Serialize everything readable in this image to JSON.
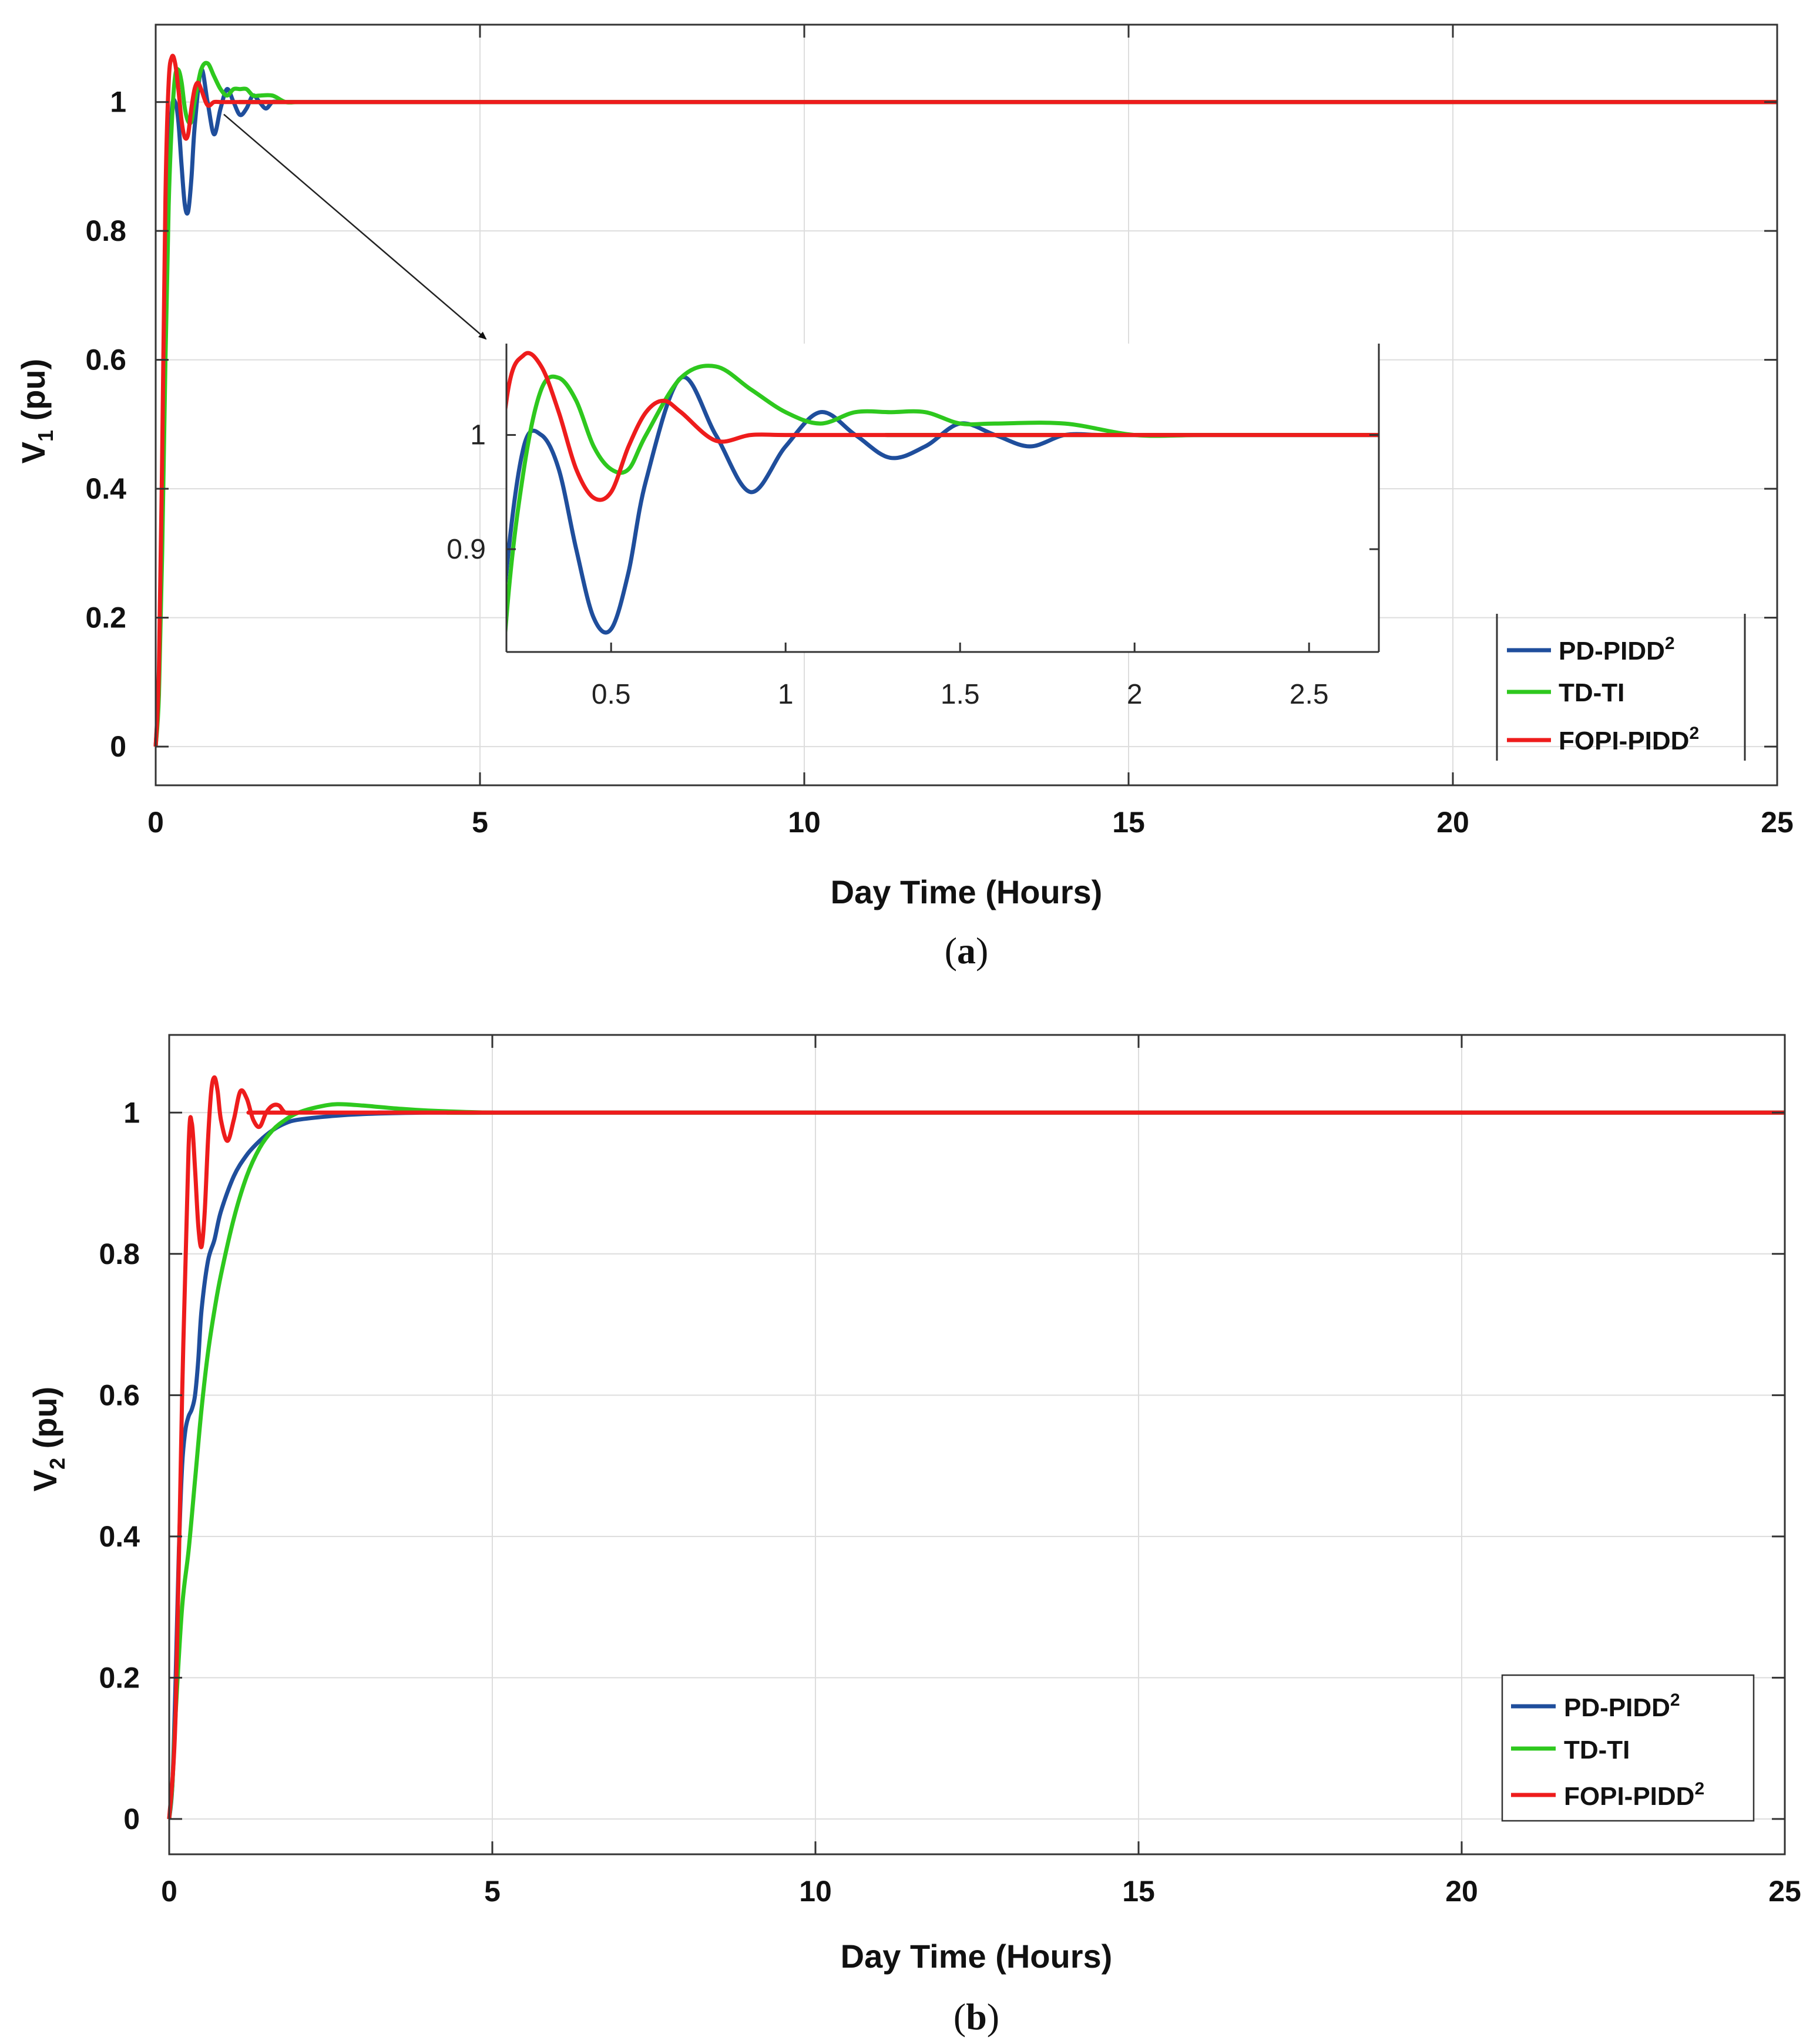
{
  "chart_data": [
    {
      "type": "line",
      "id": "a",
      "caption": "a",
      "ylabel": "V",
      "ylabel_sub": "1",
      "ylabel_unit": "(pu)",
      "xlabel": "Day Time (Hours)",
      "xlim": [
        0,
        25
      ],
      "ylim": [
        -0.06,
        1.12
      ],
      "xticks": [
        0,
        5,
        10,
        15,
        20,
        25
      ],
      "yticks": [
        0,
        0.2,
        0.4,
        0.6,
        0.8,
        1
      ],
      "ytick_labels": [
        "0",
        "0.2",
        "0.4",
        "0.6",
        "0.8",
        "1"
      ],
      "legend_position": "bottom-right",
      "series": [
        {
          "name": "PD-PIDD",
          "sup": "2",
          "color": "#1f4e9c",
          "x": [
            0,
            0.05,
            0.1,
            0.15,
            0.2,
            0.25,
            0.3,
            0.35,
            0.4,
            0.45,
            0.5,
            0.55,
            0.6,
            0.7,
            0.8,
            0.9,
            1.0,
            1.1,
            1.2,
            1.3,
            1.4,
            1.5,
            1.6,
            1.7,
            1.8,
            1.9,
            2.0,
            2.2,
            2.4,
            2.7,
            3,
            25
          ],
          "y": [
            0,
            0.1,
            0.35,
            0.68,
            0.88,
            0.99,
            1.0,
            0.97,
            0.9,
            0.84,
            0.83,
            0.88,
            0.96,
            1.05,
            1.0,
            0.95,
            0.99,
            1.02,
            1.0,
            0.98,
            0.99,
            1.01,
            1.0,
            0.99,
            1.0,
            1.0,
            1.0,
            1.0,
            1.0,
            1.0,
            1.0,
            1.0
          ]
        },
        {
          "name": "TD-TI",
          "sup": "",
          "color": "#2ec81e",
          "x": [
            0,
            0.05,
            0.1,
            0.15,
            0.2,
            0.25,
            0.3,
            0.35,
            0.4,
            0.45,
            0.5,
            0.55,
            0.6,
            0.7,
            0.8,
            0.9,
            1.0,
            1.1,
            1.2,
            1.3,
            1.4,
            1.5,
            1.6,
            1.8,
            2.0,
            2.2,
            2.5,
            2.7,
            3,
            25
          ],
          "y": [
            0,
            0.08,
            0.3,
            0.6,
            0.84,
            0.97,
            1.04,
            1.05,
            1.03,
            0.99,
            0.97,
            0.97,
            1.0,
            1.05,
            1.06,
            1.04,
            1.02,
            1.01,
            1.02,
            1.02,
            1.02,
            1.01,
            1.01,
            1.01,
            1.0,
            1.0,
            1.0,
            1.0,
            1.0,
            1.0
          ]
        },
        {
          "name": "FOPI-PIDD",
          "sup": "2",
          "color": "#ee1c1c",
          "x": [
            0,
            0.05,
            0.1,
            0.15,
            0.2,
            0.25,
            0.3,
            0.35,
            0.4,
            0.45,
            0.5,
            0.55,
            0.6,
            0.65,
            0.7,
            0.8,
            0.9,
            1.0,
            1.2,
            1.5,
            2.0,
            2.7,
            3,
            25
          ],
          "y": [
            0,
            0.12,
            0.45,
            0.85,
            1.03,
            1.07,
            1.06,
            1.02,
            0.97,
            0.945,
            0.95,
            0.99,
            1.02,
            1.03,
            1.02,
            0.995,
            1.0,
            1.0,
            1.0,
            1.0,
            1.0,
            1.0,
            1.0,
            1.0
          ]
        }
      ],
      "inset": {
        "xlim": [
          0.2,
          2.7
        ],
        "ylim": [
          0.81,
          1.08
        ],
        "xticks": [
          0.5,
          1,
          1.5,
          2,
          2.5
        ],
        "xtick_labels": [
          "0.5",
          "1",
          "1.5",
          "2",
          "2.5"
        ],
        "yticks": [
          0.9,
          1
        ],
        "ytick_labels": [
          "0.9",
          "1"
        ],
        "pointer_from": [
          1.05,
          0.99
        ]
      }
    },
    {
      "type": "line",
      "id": "b",
      "caption": "b",
      "ylabel": "V",
      "ylabel_sub": "2",
      "ylabel_unit": "(pu)",
      "xlabel": "Day Time (Hours)",
      "xlim": [
        0,
        25
      ],
      "ylim": [
        -0.05,
        1.11
      ],
      "xticks": [
        0,
        5,
        10,
        15,
        20,
        25
      ],
      "yticks": [
        0,
        0.2,
        0.4,
        0.6,
        0.8,
        1
      ],
      "ytick_labels": [
        "0",
        "0.2",
        "0.4",
        "0.6",
        "0.8",
        "1"
      ],
      "legend_position": "bottom-right",
      "series": [
        {
          "name": "PD-PIDD",
          "sup": "2",
          "color": "#1f4e9c",
          "x": [
            0,
            0.05,
            0.1,
            0.15,
            0.2,
            0.25,
            0.3,
            0.35,
            0.4,
            0.45,
            0.5,
            0.6,
            0.7,
            0.8,
            1.0,
            1.2,
            1.4,
            1.6,
            1.8,
            2.0,
            2.5,
            3.0,
            4.0,
            5.0,
            25
          ],
          "y": [
            0,
            0.05,
            0.2,
            0.38,
            0.5,
            0.55,
            0.57,
            0.58,
            0.6,
            0.65,
            0.72,
            0.79,
            0.82,
            0.86,
            0.91,
            0.94,
            0.96,
            0.975,
            0.985,
            0.99,
            0.995,
            0.998,
            1.0,
            1.0,
            1.0
          ]
        },
        {
          "name": "TD-TI",
          "sup": "",
          "color": "#2ec81e",
          "x": [
            0,
            0.05,
            0.1,
            0.2,
            0.3,
            0.4,
            0.5,
            0.6,
            0.7,
            0.8,
            1.0,
            1.2,
            1.4,
            1.6,
            1.8,
            2.0,
            2.3,
            2.6,
            3.0,
            3.5,
            4.0,
            5.0,
            6.0,
            25
          ],
          "y": [
            0,
            0.05,
            0.15,
            0.3,
            0.38,
            0.48,
            0.58,
            0.66,
            0.72,
            0.77,
            0.85,
            0.91,
            0.95,
            0.975,
            0.99,
            1.0,
            1.008,
            1.012,
            1.01,
            1.006,
            1.003,
            1.0,
            1.0,
            1.0
          ]
        },
        {
          "name": "FOPI-PIDD",
          "sup": "2",
          "color": "#ee1c1c",
          "x": [
            0,
            0.1,
            0.2,
            0.3,
            0.35,
            0.4,
            0.45,
            0.5,
            0.55,
            0.6,
            0.65,
            0.7,
            0.75,
            0.8,
            0.9,
            1.0,
            1.1,
            1.2,
            1.3,
            1.4,
            1.5,
            1.6,
            1.7,
            1.8,
            2.0,
            2.2,
            2.5,
            3.0,
            25
          ],
          "y": [
            0,
            0.15,
            0.6,
            0.95,
            0.985,
            0.92,
            0.84,
            0.81,
            0.86,
            0.96,
            1.03,
            1.05,
            1.03,
            0.99,
            0.96,
            0.99,
            1.03,
            1.02,
            0.99,
            0.98,
            1.0,
            1.01,
            1.01,
            1.0,
            1.0,
            1.0,
            1.0,
            1.0,
            1.0
          ]
        }
      ]
    }
  ]
}
